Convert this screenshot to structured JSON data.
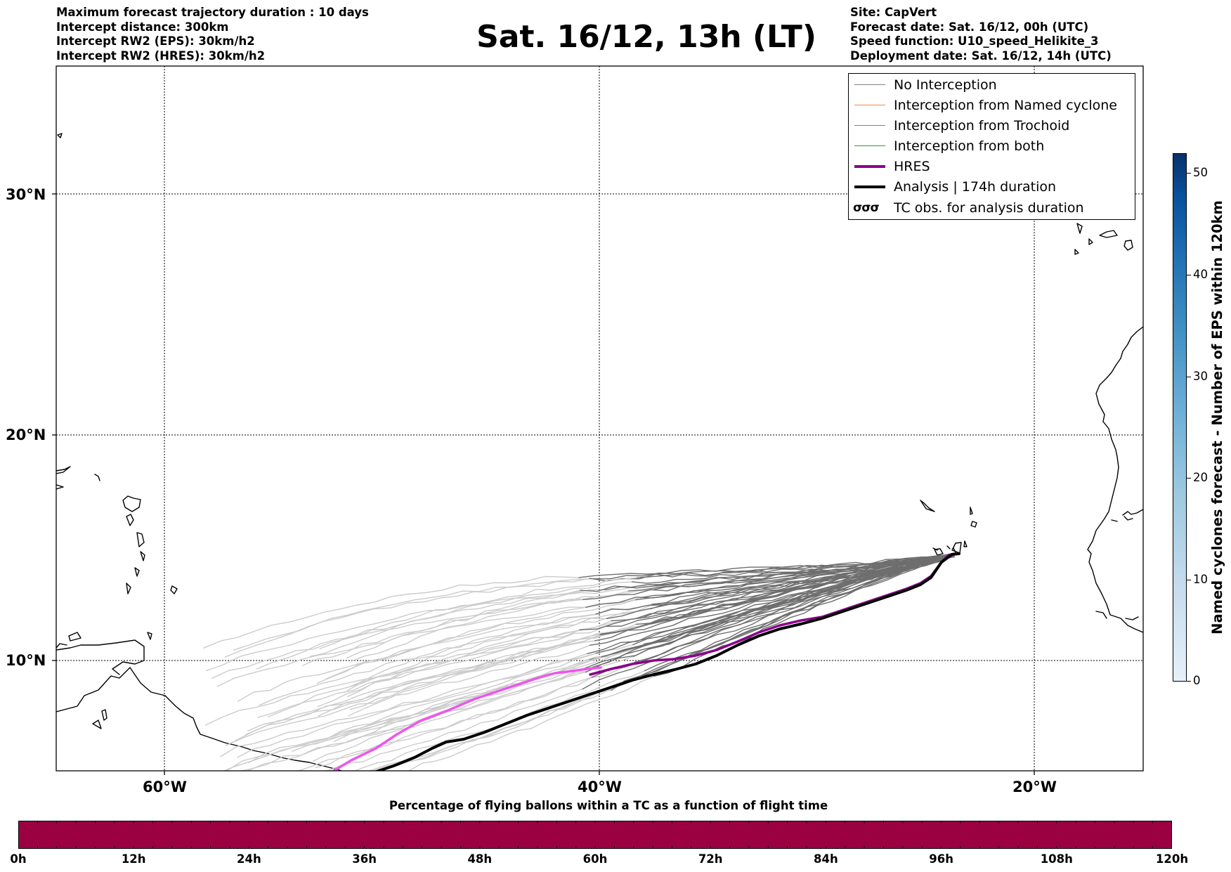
{
  "header": {
    "left_lines": [
      "Maximum forecast trajectory duration : 10 days",
      "Intercept distance: 300km",
      "Intercept RW2 (EPS):  30km/h2",
      "Intercept RW2 (HRES): 30km/h2"
    ],
    "title": "Sat. 16/12, 13h (LT)",
    "right_lines": [
      "Site: CapVert",
      "Forecast date: Sat. 16/12, 00h (UTC)",
      "Speed function: U10_speed_Helikite_3",
      "Deployment date: Sat. 16/12, 14h (UTC)"
    ]
  },
  "map": {
    "lat_labels": [
      "30°N",
      "20°N",
      "10°N"
    ],
    "lon_labels": [
      "60°W",
      "40°W",
      "20°W"
    ]
  },
  "legend": {
    "items": [
      {
        "label": "No Interception",
        "color": "#808080",
        "width": 1.5
      },
      {
        "label": "Interception from Named cyclone",
        "color": "#ff7f50",
        "width": 1.5
      },
      {
        "label": "Interception from Trochoid",
        "color": "#8b8b2e",
        "width": 1.5
      },
      {
        "label": "Interception from both",
        "color": "#2ca02c",
        "width": 1.5
      },
      {
        "label": "HRES",
        "color": "#8b008b",
        "width": 4
      },
      {
        "label": "Analysis | 174h duration",
        "color": "#000000",
        "width": 4
      }
    ],
    "tc_glyph": "σσσ",
    "tc_label": "TC obs. for analysis duration"
  },
  "colorbar": {
    "title": "Named cyclones forecast - Number of EPS within 120km",
    "ticks": [
      "0",
      "10",
      "20",
      "30",
      "40",
      "50"
    ]
  },
  "percentage_bar": {
    "title": "Percentage of flying ballons within a TC as a function of flight time",
    "color": "#9b0040",
    "ticks": [
      "0h",
      "12h",
      "24h",
      "36h",
      "48h",
      "60h",
      "72h",
      "84h",
      "96h",
      "108h",
      "120h"
    ]
  }
}
